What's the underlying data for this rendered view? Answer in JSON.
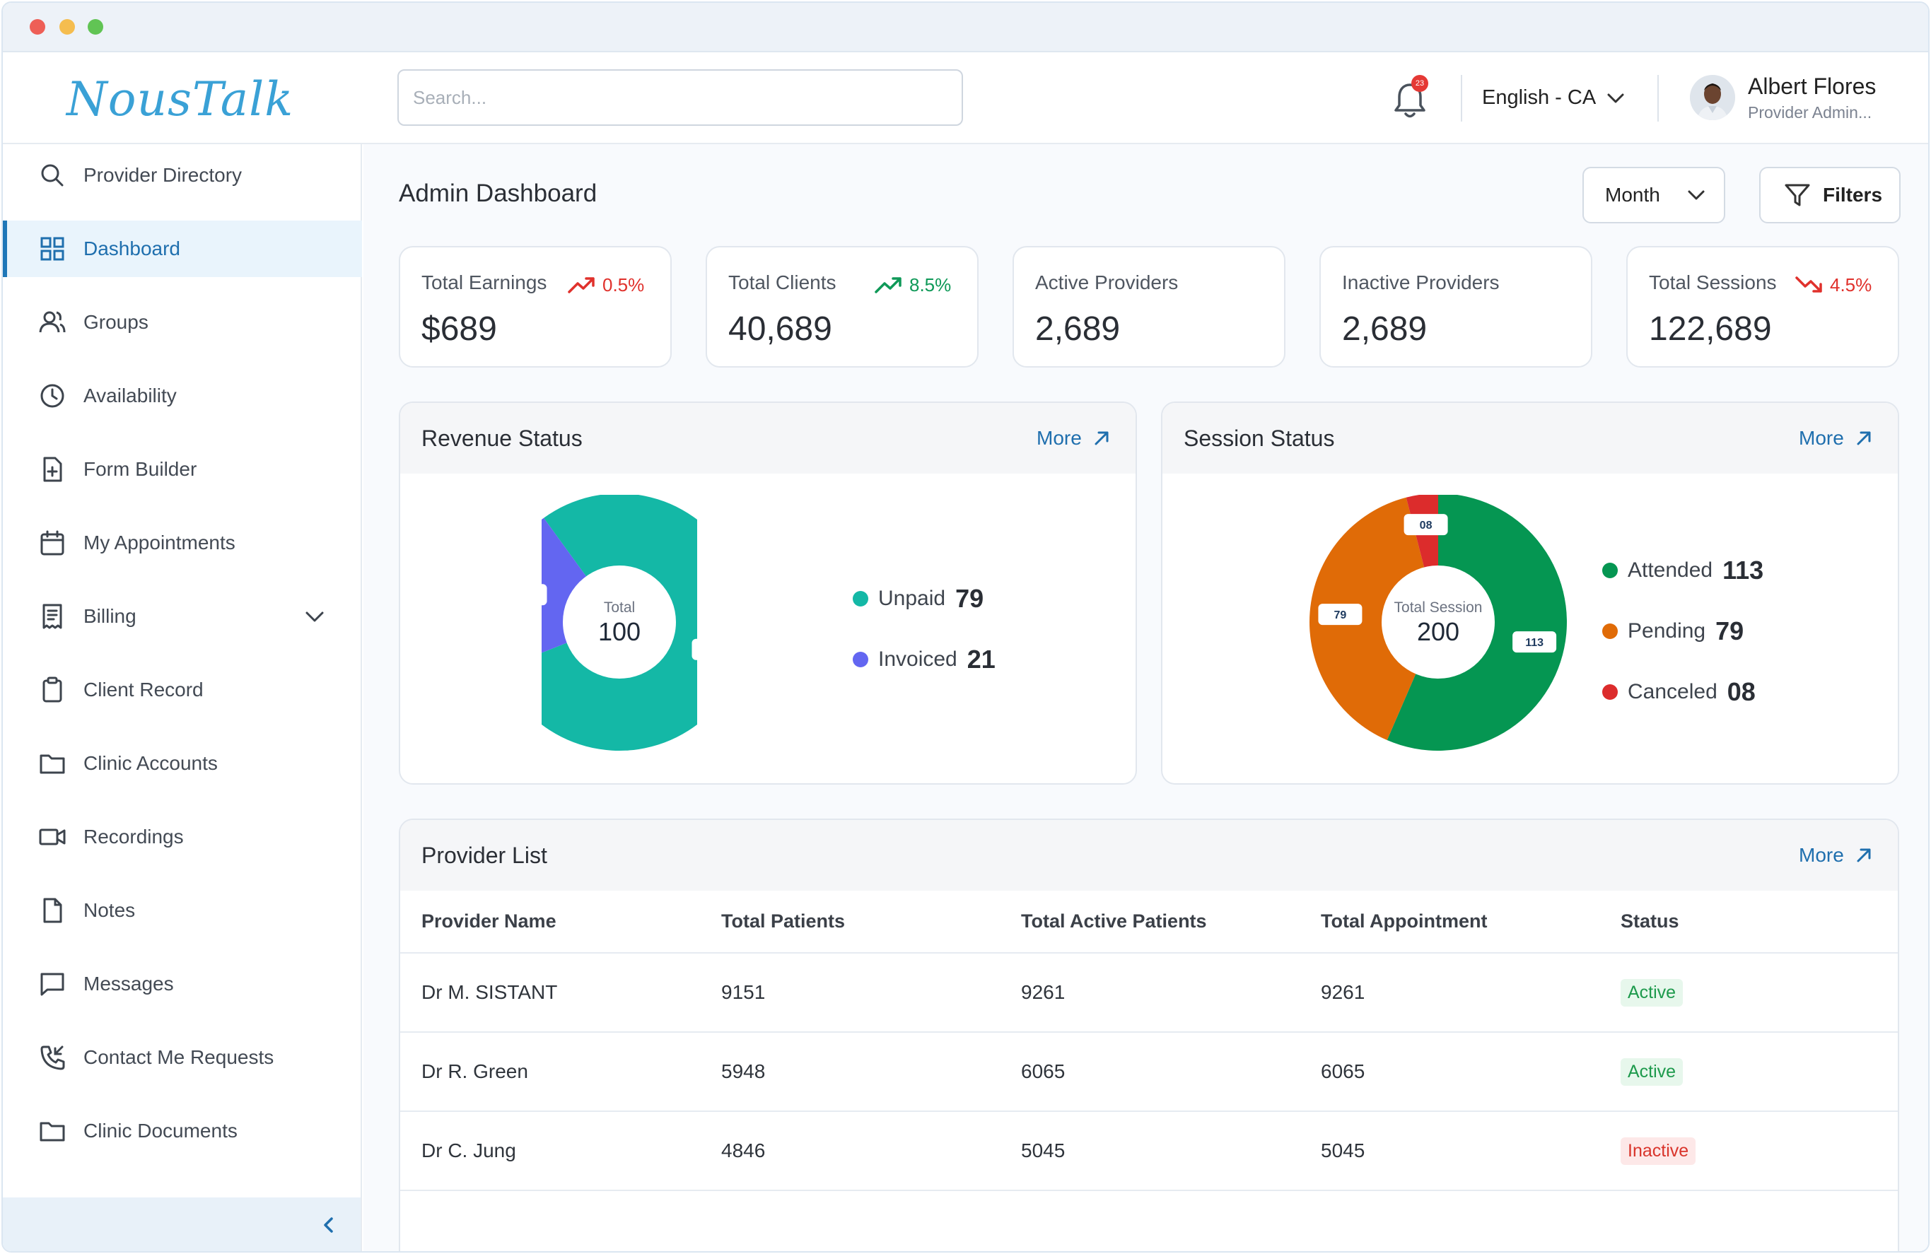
{
  "app": {
    "logo_text": "NousTalk",
    "search_placeholder": "Search...",
    "notifications_count": "23",
    "language": "English - CA",
    "user": {
      "name": "Albert Flores",
      "role": "Provider Admin..."
    }
  },
  "sidebar": {
    "items": [
      {
        "label": "Provider Directory",
        "icon": "search-icon"
      },
      {
        "label": "Dashboard",
        "icon": "grid-icon",
        "active": true
      },
      {
        "label": "Groups",
        "icon": "users-icon"
      },
      {
        "label": "Availability",
        "icon": "clock-icon"
      },
      {
        "label": "Form Builder",
        "icon": "file-plus-icon"
      },
      {
        "label": "My Appointments",
        "icon": "calendar-icon"
      },
      {
        "label": "Billing",
        "icon": "receipt-icon",
        "expandable": true
      },
      {
        "label": "Client Record",
        "icon": "clipboard-icon"
      },
      {
        "label": "Clinic Accounts",
        "icon": "folder-icon"
      },
      {
        "label": "Recordings",
        "icon": "video-icon"
      },
      {
        "label": "Notes",
        "icon": "document-icon"
      },
      {
        "label": "Messages",
        "icon": "message-icon"
      },
      {
        "label": "Contact Me Requests",
        "icon": "phone-incoming-icon"
      },
      {
        "label": "Clinic Documents",
        "icon": "folder-icon"
      }
    ]
  },
  "page": {
    "title": "Admin Dashboard",
    "period_select": "Month",
    "filters_label": "Filters"
  },
  "stats": [
    {
      "label": "Total Earnings",
      "value": "$689",
      "trend": "0.5%",
      "trend_dir": "up",
      "trend_color": "#e0312c"
    },
    {
      "label": "Total Clients",
      "value": "40,689",
      "trend": "8.5%",
      "trend_dir": "up",
      "trend_color": "#0f9958"
    },
    {
      "label": "Active Providers",
      "value": "2,689"
    },
    {
      "label": "Inactive Providers",
      "value": "2,689"
    },
    {
      "label": "Total Sessions",
      "value": "122,689",
      "trend": "4.5%",
      "trend_dir": "down",
      "trend_color": "#e0312c"
    }
  ],
  "revenue": {
    "title": "Revenue Status",
    "more": "More",
    "center_label": "Total",
    "center_value": "100",
    "slices": [
      {
        "name": "Unpaid",
        "value": 79,
        "display": "79",
        "color": "#14b8a6"
      },
      {
        "name": "Invoiced",
        "value": 21,
        "display": "21",
        "color": "#6366f1"
      }
    ]
  },
  "sessions": {
    "title": "Session Status",
    "more": "More",
    "center_label": "Total Session",
    "center_value": "200",
    "slices": [
      {
        "name": "Attended",
        "value": 113,
        "display": "113",
        "color": "#059652"
      },
      {
        "name": "Pending",
        "value": 79,
        "display": "79",
        "color": "#e06b07"
      },
      {
        "name": "Canceled",
        "value": 8,
        "display": "08",
        "color": "#dc2c2c"
      }
    ]
  },
  "provider_list": {
    "title": "Provider List",
    "more": "More",
    "columns": [
      "Provider Name",
      "Total Patients",
      "Total Active Patients",
      "Total Appointment",
      "Status"
    ],
    "rows": [
      {
        "name": "Dr M. SISTANT",
        "patients": "9151",
        "active": "9261",
        "appointments": "9261",
        "status": "Active"
      },
      {
        "name": "Dr R. Green",
        "patients": "5948",
        "active": "6065",
        "appointments": "6065",
        "status": "Active"
      },
      {
        "name": "Dr C. Jung",
        "patients": "4846",
        "active": "5045",
        "appointments": "5045",
        "status": "Inactive"
      }
    ]
  }
}
